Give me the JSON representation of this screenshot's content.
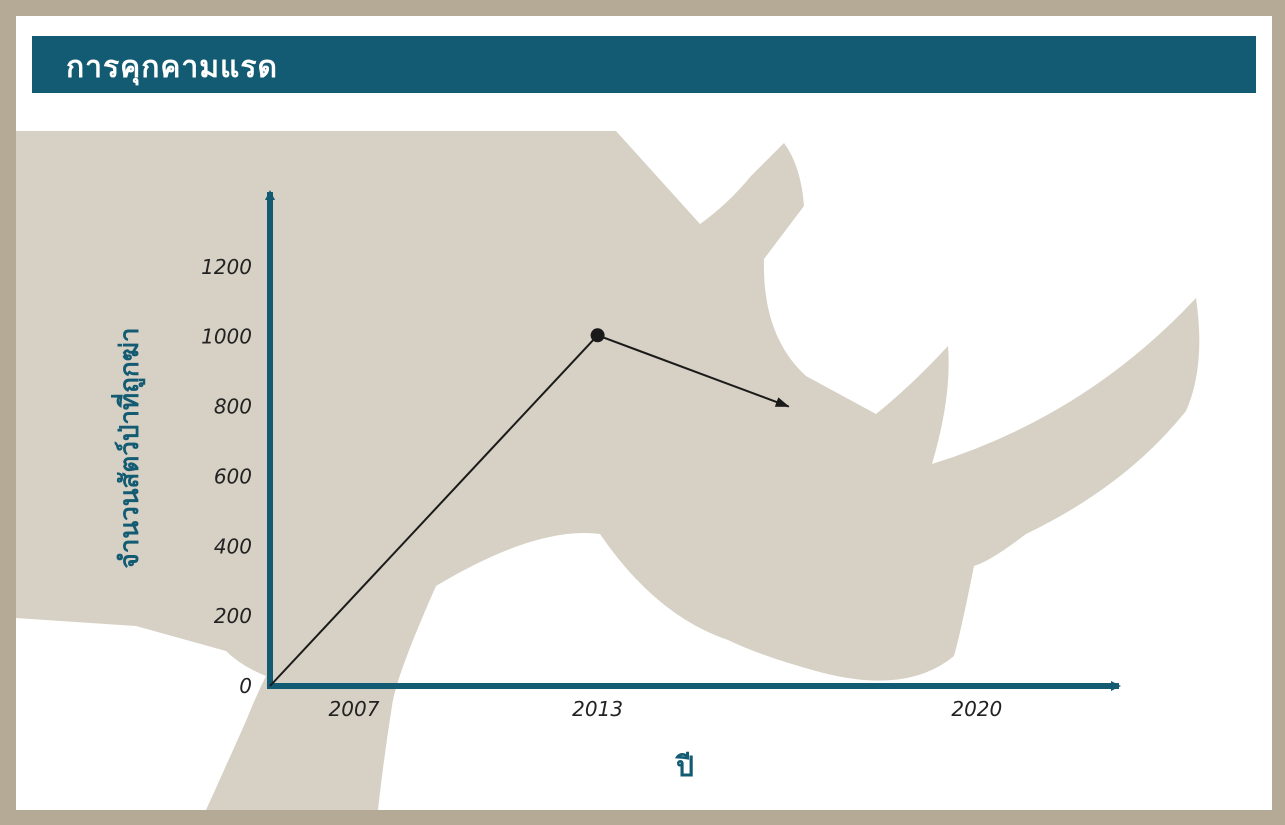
{
  "title": "การคุกคามแรด",
  "chart_data": {
    "type": "line",
    "title": "การคุกคามแรด",
    "xlabel": "ปี",
    "ylabel": "จำนวนสัตว์ป่าที่ถูกฆ่า",
    "x_ticks": [
      "2007",
      "2013",
      "2020"
    ],
    "y_ticks": [
      "0",
      "200",
      "400",
      "600",
      "800",
      "1000",
      "1200"
    ],
    "ylim": [
      0,
      1300
    ],
    "series": [
      {
        "points": [
          {
            "x": 2007,
            "y": 0
          },
          {
            "x": 2013,
            "y": 1004
          }
        ]
      }
    ],
    "trend_arrow": {
      "from": {
        "x": 2013,
        "y": 1004
      },
      "to": {
        "x": 2016.5,
        "y": 800
      }
    },
    "grid": false,
    "legend": "none"
  },
  "colors": {
    "frame": "#b5aa96",
    "banner": "#135b73",
    "axis": "#135b73",
    "silhouette": "#d6d1c4",
    "line": "#1a1a1a"
  },
  "background_icon": "rhino-silhouette"
}
